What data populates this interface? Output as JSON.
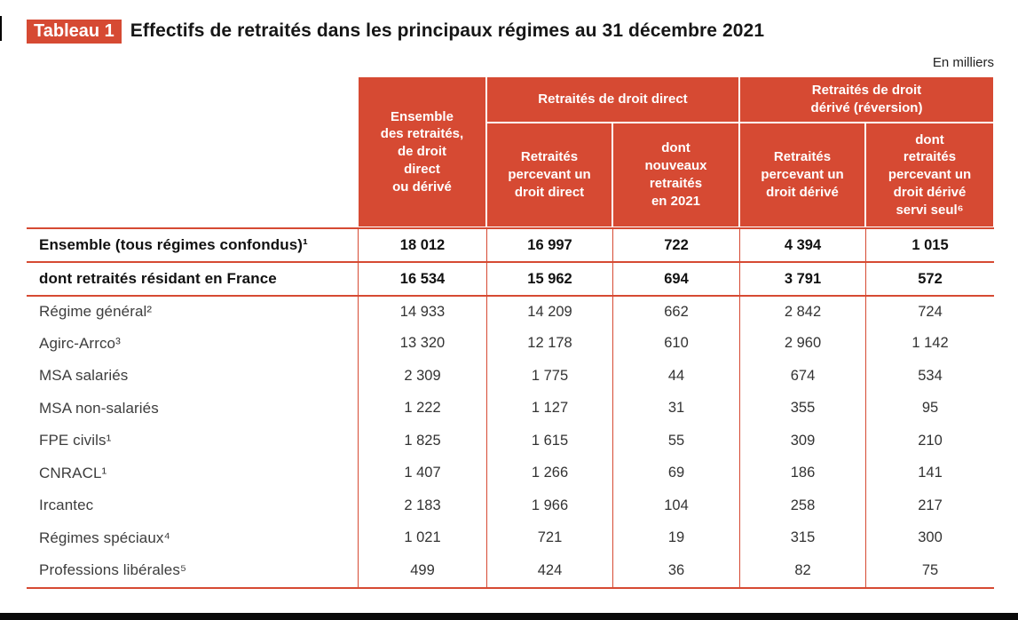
{
  "title": {
    "badge": "Tableau 1",
    "text": "Effectifs de retraités dans les principaux régimes au 31 décembre 2021"
  },
  "unit_label": "En milliers",
  "colors": {
    "accent_red": "#d64a33",
    "text_dark": "#111111"
  },
  "table": {
    "header": {
      "col_ensemble": "Ensemble\ndes retraités,\nde droit\ndirect\nou dérivé",
      "group_direct": "Retraités de droit direct",
      "group_derive": "Retraités de droit\ndérivé (réversion)",
      "sub_direct_percevant": "Retraités\npercevant un\ndroit direct",
      "sub_direct_nouveaux": "dont\nnouveaux\nretraités\nen 2021",
      "sub_derive_percevant": "Retraités\npercevant un\ndroit dérivé",
      "sub_derive_seul": "dont\nretraités\npercevant un\ndroit dérivé\nservi seul⁶"
    },
    "rows": [
      {
        "label": "Ensemble (tous régimes confondus)¹",
        "bold": true,
        "values": [
          "18 012",
          "16 997",
          "722",
          "4 394",
          "1 015"
        ]
      },
      {
        "label": "dont retraités résidant en France",
        "bold": true,
        "values": [
          "16 534",
          "15 962",
          "694",
          "3 791",
          "572"
        ]
      },
      {
        "label": "Régime général²",
        "bold": false,
        "values": [
          "14 933",
          "14 209",
          "662",
          "2 842",
          "724"
        ]
      },
      {
        "label": "Agirc-Arrco³",
        "bold": false,
        "values": [
          "13 320",
          "12 178",
          "610",
          "2 960",
          "1 142"
        ]
      },
      {
        "label": "MSA salariés",
        "bold": false,
        "values": [
          "2 309",
          "1 775",
          "44",
          "674",
          "534"
        ]
      },
      {
        "label": "MSA non-salariés",
        "bold": false,
        "values": [
          "1 222",
          "1 127",
          "31",
          "355",
          "95"
        ]
      },
      {
        "label": "FPE civils¹",
        "bold": false,
        "values": [
          "1 825",
          "1 615",
          "55",
          "309",
          "210"
        ]
      },
      {
        "label": "CNRACL¹",
        "bold": false,
        "values": [
          "1 407",
          "1 266",
          "69",
          "186",
          "141"
        ]
      },
      {
        "label": "Ircantec",
        "bold": false,
        "values": [
          "2 183",
          "1 966",
          "104",
          "258",
          "217"
        ]
      },
      {
        "label": "Régimes spéciaux⁴",
        "bold": false,
        "values": [
          "1 021",
          "721",
          "19",
          "315",
          "300"
        ]
      },
      {
        "label": "Professions libérales⁵",
        "bold": false,
        "values": [
          "499",
          "424",
          "36",
          "82",
          "75"
        ]
      }
    ]
  }
}
